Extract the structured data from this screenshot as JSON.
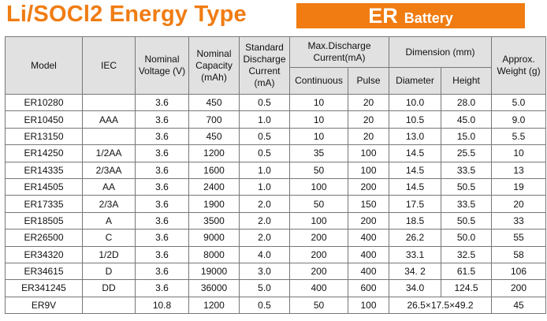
{
  "header": {
    "title": "Li/SOCl2 Energy Type",
    "banner_main": "ER",
    "banner_sub": "Battery",
    "title_color": "#f07c12",
    "banner_color": "#f07c12"
  },
  "table": {
    "headers": {
      "model": "Model",
      "iec": "IEC",
      "voltage": "Nominal Voltage (V)",
      "capacity": "Nominal Capacity (mAh)",
      "std_current": "Standard Discharge Current (mA)",
      "max_discharge": "Max.Discharge Current(mA)",
      "continuous": "Continuous",
      "pulse": "Pulse",
      "dimension": "Dimension (mm)",
      "diameter": "Diameter",
      "height": "Height",
      "weight": "Approx. Weight (g)"
    },
    "rows": [
      [
        "ER10280",
        "",
        "3.6",
        "450",
        "0.5",
        "10",
        "20",
        "10.0",
        "28.0",
        "5.0"
      ],
      [
        "ER10450",
        "AAA",
        "3.6",
        "700",
        "1.0",
        "10",
        "20",
        "10.5",
        "45.0",
        "9.0"
      ],
      [
        "ER13150",
        "",
        "3.6",
        "450",
        "0.5",
        "10",
        "20",
        "13.0",
        "15.0",
        "5.5"
      ],
      [
        "ER14250",
        "1/2AA",
        "3.6",
        "1200",
        "0.5",
        "35",
        "100",
        "14.5",
        "25.5",
        "10"
      ],
      [
        "ER14335",
        "2/3AA",
        "3.6",
        "1600",
        "1.0",
        "50",
        "100",
        "14.5",
        "33.5",
        "13"
      ],
      [
        "ER14505",
        "AA",
        "3.6",
        "2400",
        "1.0",
        "100",
        "200",
        "14.5",
        "50.5",
        "19"
      ],
      [
        "ER17335",
        "2/3A",
        "3.6",
        "1900",
        "2.0",
        "50",
        "150",
        "17.5",
        "33.5",
        "20"
      ],
      [
        "ER18505",
        "A",
        "3.6",
        "3500",
        "2.0",
        "100",
        "200",
        "18.5",
        "50.5",
        "33"
      ],
      [
        "ER26500",
        "C",
        "3.6",
        "9000",
        "2.0",
        "200",
        "400",
        "26.2",
        "50.0",
        "55"
      ],
      [
        "ER34320",
        "1/2D",
        "3.6",
        "8000",
        "4.0",
        "200",
        "400",
        "33.1",
        "32.5",
        "58"
      ],
      [
        "ER34615",
        "D",
        "3.6",
        "19000",
        "3.0",
        "200",
        "400",
        "34. 2",
        "61.5",
        "106"
      ],
      [
        "ER341245",
        "DD",
        "3.6",
        "36000",
        "5.0",
        "400",
        "600",
        "34.0",
        "124.5",
        "200"
      ]
    ],
    "last_row": {
      "model": "ER9V",
      "iec": "",
      "voltage": "10.8",
      "capacity": "1200",
      "std_current": "0.5",
      "continuous": "50",
      "pulse": "100",
      "dimension": "26.5×17.5×49.2",
      "weight": "45"
    }
  }
}
